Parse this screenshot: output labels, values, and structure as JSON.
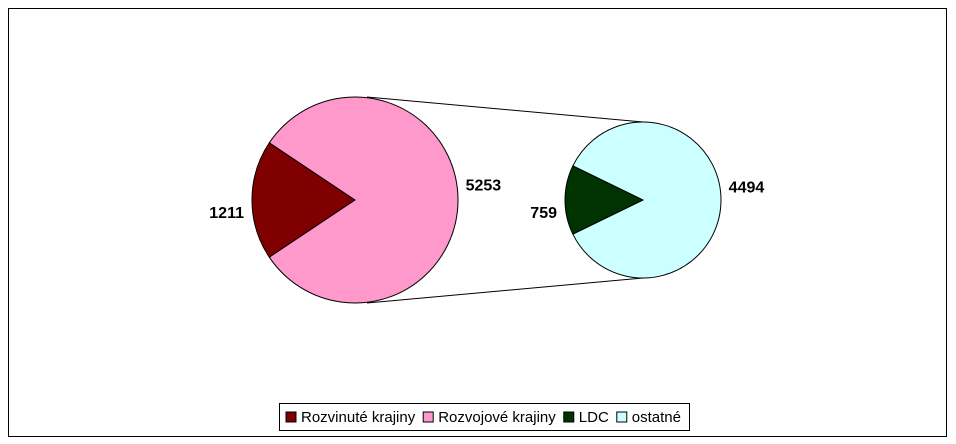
{
  "chart_data": {
    "type": "pie",
    "categories": [
      "Rozvinuté krajiny",
      "Rozvojové krajiny"
    ],
    "values": [
      1211,
      5253
    ],
    "colors": [
      "#800000",
      "#ff99cc"
    ],
    "secondary": {
      "categories": [
        "LDC",
        "ostatné"
      ],
      "values": [
        759,
        4494
      ],
      "colors": [
        "#003300",
        "#ccffff"
      ]
    },
    "legend": "bottom"
  }
}
